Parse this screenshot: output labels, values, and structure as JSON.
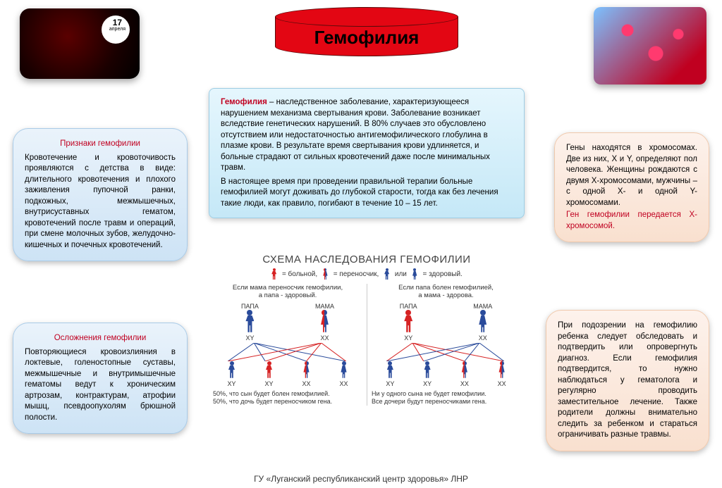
{
  "colors": {
    "banner": "#e30613",
    "accent_red": "#c00020",
    "person_red": "#d62223",
    "person_blue": "#2a4b9b",
    "bubble_blue_bg": "#cde3f5",
    "bubble_peach_bg": "#f9e0cf",
    "main_box_bg": "#c5e8f7"
  },
  "title": "Гемофилия",
  "date_badge": {
    "day": "17",
    "month": "апреля"
  },
  "signs": {
    "heading": "Признаки гемофилии",
    "body": "Кровотечение и кровоточивость проявляются с детства в виде: длительного кровотечения и плохого заживления пупочной ранки, подкожных, межмышечных, внутрисуставных гематом, кровотечений после травм и операций, при смене молочных зубов, желудочно-кишечных и почечных кровотечений."
  },
  "complications": {
    "heading": "Осложнения гемофилии",
    "body": "Повторяющиеся кровоизлияния в локтевые, голеностопные суставы, межмышечные и внутримышечные гематомы ведут к хроническим артрозам, контрактурам, атрофии мышц, псевдоопухолям брюшной полости."
  },
  "main": {
    "keyword": "Гемофилия",
    "para1": " – наследственное заболевание, характеризующееся нарушением механизма свертывания крови. Заболевание возникает вследствие генетических нарушений. В 80% случаев это обусловлено отсутствием или недостаточностью антигемофилического глобулина в плазме крови. В результате время свертывания крови удлиняется, и больные страдают от сильных кровотечений даже после минимальных травм.",
    "para2": "В настоящее время при проведении правильной терапии больные гемофилией могут доживать до глубокой старости, тогда как без лечения такие люди, как правило, погибают в течение 10 – 15 лет."
  },
  "genes": {
    "body1": "Гены находятся в хромосомах. Две из них, Х и Y, определяют пол человека. Женщины рождаются с двумя Х-хромосомами, мужчины – с одной Х- и одной Y-хромосомами.",
    "highlight": "Ген гемофилии передается Х-хромосомой."
  },
  "advice": {
    "body": "При подозрении на гемофилию ребенка следует обследовать и подтвердить или опровергнуть диагноз. Если гемофилия подтвердится, то нужно наблюдаться у гематолога и регулярно проводить заместительное лечение. Также родители должны внимательно следить за ребенком и стараться ограничивать разные травмы."
  },
  "scheme": {
    "title": "СХЕМА НАСЛЕДОВАНИЯ ГЕМОФИЛИИ",
    "legend": {
      "sick": "= больной,",
      "carrier": "= переносчик,",
      "healthy": "= здоровый.",
      "or": "или"
    },
    "papa": "ПАПА",
    "mama": "МАМА",
    "left": {
      "scenario": "Если мама переносчик гемофилии,\nа папа - здоровый.",
      "papa_color": "c-blue",
      "papa_geno": "XY",
      "mama_color": "c-half",
      "mama_geno": "XX",
      "children": [
        {
          "color": "c-blue",
          "geno": "XY"
        },
        {
          "color": "c-red",
          "geno": "XY"
        },
        {
          "color": "c-half",
          "geno": "XX",
          "fem": true
        },
        {
          "color": "c-blue",
          "geno": "XX",
          "fem": true
        }
      ],
      "note": "50%, что сын будет болен гемофилией.\n50%, что дочь будет переносчиком гена."
    },
    "right": {
      "scenario": "Если папа болен гемофилией,\nа мама - здорова.",
      "papa_color": "c-red",
      "papa_geno": "XY",
      "mama_color": "c-blue",
      "mama_geno": "XX",
      "children": [
        {
          "color": "c-blue",
          "geno": "XY"
        },
        {
          "color": "c-blue",
          "geno": "XY"
        },
        {
          "color": "c-half",
          "geno": "XX",
          "fem": true
        },
        {
          "color": "c-half",
          "geno": "XX",
          "fem": true
        }
      ],
      "note": "Ни у одного сына не будет гемофилии.\nВсе дочери будут переносчиками гена."
    }
  },
  "footer": "ГУ «Луганский республиканский центр здоровья» ЛНР"
}
